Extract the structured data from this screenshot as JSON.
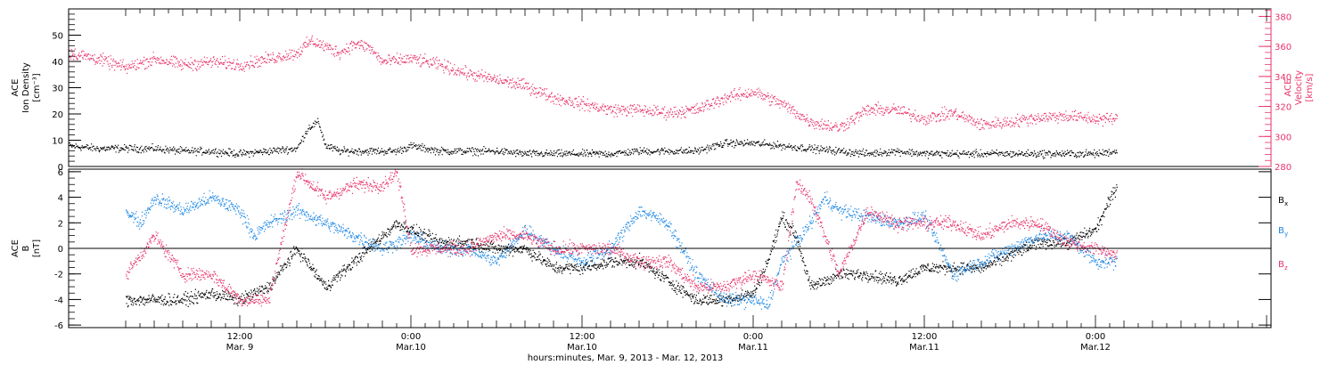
{
  "chart_data": [
    {
      "type": "scatter",
      "panel": "top",
      "ylabel_lines": [
        "ACE",
        "Ion Density",
        "[cm⁻³]"
      ],
      "ylabel_right_lines": [
        "ACE",
        "Velocity",
        "[km/s]"
      ],
      "ylim": [
        0,
        60
      ],
      "yticks": [
        0,
        10,
        20,
        30,
        40,
        50
      ],
      "ylim_right": [
        280,
        385
      ],
      "yticks_right": [
        280,
        300,
        320,
        340,
        360,
        380
      ],
      "colors": {
        "density": "#000000",
        "velocity": "#e8336a"
      },
      "series": [
        {
          "name": "",
          "axis": "left",
          "color": "#000000",
          "x_hours": [
            0,
            2,
            4,
            6,
            8,
            10,
            12,
            14,
            16,
            16.8,
            17.5,
            18,
            19,
            20,
            22,
            23,
            24,
            25,
            26,
            28,
            30,
            32,
            34,
            36,
            38,
            40,
            42,
            44,
            46,
            48,
            50,
            52,
            54,
            56,
            58,
            60,
            62,
            64,
            66,
            68,
            70,
            72,
            73.5
          ],
          "values": [
            8,
            7,
            7,
            7,
            6,
            6,
            5,
            6,
            7,
            15,
            17,
            8,
            6,
            6,
            6,
            6,
            8,
            7,
            6,
            6,
            6,
            5,
            5,
            5,
            5,
            6,
            6,
            6,
            9,
            9,
            8,
            7,
            6,
            5,
            6,
            5,
            5,
            5,
            5,
            5,
            5,
            5,
            6
          ]
        },
        {
          "name": "",
          "axis": "right",
          "color": "#e8336a",
          "x_hours": [
            0,
            2,
            4,
            6,
            8,
            10,
            12,
            14,
            16,
            17,
            18,
            19,
            20,
            21,
            22,
            24,
            26,
            28,
            30,
            32,
            34,
            36,
            38,
            40,
            42,
            44,
            46,
            48,
            50,
            52,
            54,
            56,
            58,
            60,
            62,
            64,
            66,
            68,
            70,
            72,
            73.5
          ],
          "values": [
            356,
            352,
            346,
            352,
            348,
            350,
            348,
            352,
            356,
            364,
            360,
            356,
            362,
            360,
            350,
            352,
            348,
            342,
            338,
            334,
            326,
            322,
            318,
            318,
            316,
            318,
            326,
            330,
            322,
            310,
            306,
            318,
            318,
            312,
            316,
            308,
            310,
            313,
            314,
            312,
            312
          ]
        }
      ]
    },
    {
      "type": "scatter",
      "panel": "bottom",
      "ylabel_lines": [
        "ACE",
        "B",
        "[nT]"
      ],
      "ylim": [
        -6.2,
        6.2
      ],
      "yticks": [
        -6,
        -4,
        -2,
        0,
        2,
        4,
        6
      ],
      "zero_line": true,
      "x_start_hour": 4,
      "x_tick_hours": [
        12,
        24,
        36,
        48,
        60,
        72
      ],
      "x_tick_labels": [
        [
          "12:00",
          "Mar. 9"
        ],
        [
          "0:00",
          "Mar.10"
        ],
        [
          "12:00",
          "Mar.10"
        ],
        [
          "0:00",
          "Mar.11"
        ],
        [
          "12:00",
          "Mar.11"
        ],
        [
          "0:00",
          "Mar.12"
        ]
      ],
      "xlabel": "hours:minutes, Mar.  9, 2013 - Mar. 12, 2013",
      "legend": [
        "B",
        "B",
        "B"
      ],
      "legend_subscripts": [
        "x",
        "y",
        "z"
      ],
      "legend_placement": "right",
      "series": [
        {
          "name": "",
          "color": "#000000",
          "x_hours": [
            4,
            6,
            8,
            10,
            12,
            14,
            16,
            18,
            20,
            22,
            23,
            24,
            26,
            28,
            30,
            32,
            34,
            36,
            38,
            40,
            42,
            44,
            46,
            48,
            49,
            50,
            51,
            52,
            54,
            56,
            58,
            60,
            62,
            64,
            66,
            68,
            70,
            72,
            73.5
          ],
          "values": [
            -4,
            -4,
            -4,
            -3.5,
            -4,
            -3,
            0,
            -3,
            -1,
            1,
            2,
            1.5,
            0.5,
            0.5,
            0,
            0,
            -1.5,
            -1.5,
            -1,
            -1,
            -2.5,
            -4,
            -4,
            -3.5,
            -1,
            2.5,
            1,
            -3,
            -2,
            -2,
            -2.5,
            -1.5,
            -1.5,
            -1.5,
            -0.5,
            0.5,
            0.5,
            1.5,
            5
          ]
        },
        {
          "name": "",
          "color": "#1e88e5",
          "x_hours": [
            4,
            5,
            6,
            8,
            10,
            12,
            13,
            14,
            16,
            18,
            20,
            22,
            24,
            26,
            28,
            30,
            32,
            34,
            36,
            38,
            40,
            42,
            44,
            46,
            48,
            49,
            50,
            52,
            53,
            54,
            56,
            58,
            60,
            62,
            64,
            66,
            68,
            70,
            72,
            73.5
          ],
          "values": [
            3,
            2,
            4,
            3,
            4,
            3,
            1,
            2,
            3,
            2,
            1,
            0,
            1,
            0,
            0,
            -1,
            1.5,
            0,
            -1,
            0,
            3,
            2,
            -2,
            -4,
            -4,
            -4.5,
            -1,
            2,
            4,
            3,
            2.5,
            2,
            2.5,
            -2,
            -1,
            0,
            1,
            1,
            -1,
            -1
          ]
        },
        {
          "name": "",
          "color": "#e8336a",
          "x_hours": [
            4,
            6,
            8,
            10,
            12,
            14,
            16,
            18,
            20,
            22,
            23,
            24,
            26,
            28,
            30,
            32,
            34,
            36,
            38,
            40,
            42,
            44,
            46,
            48,
            50,
            51,
            52,
            54,
            56,
            58,
            60,
            62,
            64,
            66,
            68,
            70,
            72,
            73.5
          ],
          "values": [
            -2,
            1,
            -2,
            -2,
            -4,
            -4,
            6,
            4,
            5,
            5,
            6,
            0,
            0,
            0,
            1,
            1,
            0,
            0,
            0,
            -1,
            -1,
            -3,
            -3,
            -2,
            -3,
            5,
            4,
            -2,
            3,
            2,
            2,
            2,
            1,
            2,
            2,
            0.5,
            0,
            -0.5
          ]
        }
      ]
    }
  ]
}
